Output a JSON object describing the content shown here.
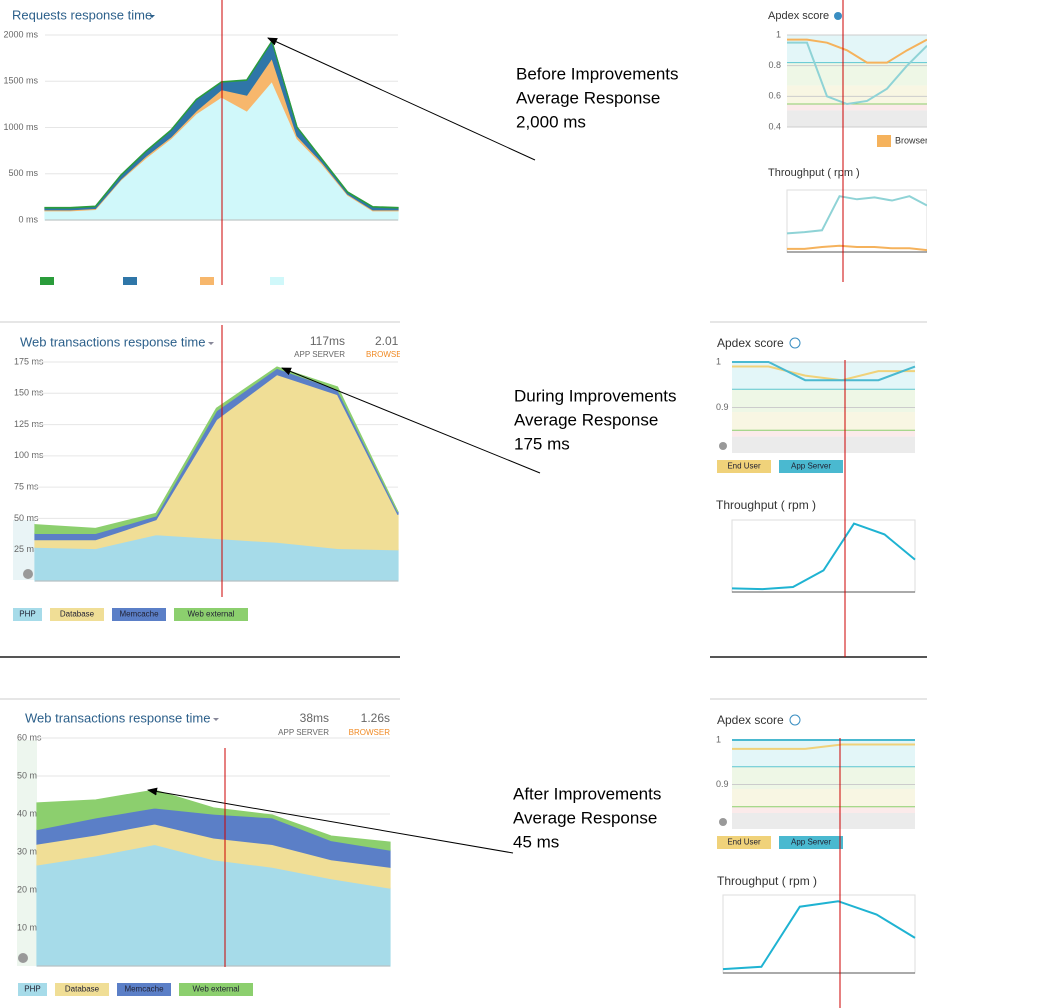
{
  "chart_data": [
    {
      "type": "area",
      "title": "Requests response time",
      "ylim": [
        0,
        2000
      ],
      "yticks": [
        {
          "value": 0,
          "label": "0 ms"
        },
        {
          "value": 500,
          "label": "500 ms"
        },
        {
          "value": 1000,
          "label": "1000 ms"
        },
        {
          "value": 1500,
          "label": "1500 ms"
        },
        {
          "value": 2000,
          "label": "2000 ms"
        }
      ],
      "grid": true,
      "series": [
        {
          "color": "#d0f8fa",
          "values": [
            100,
            100,
            115,
            430,
            670,
            880,
            1150,
            1330,
            1180,
            1500,
            880,
            600,
            270,
            100,
            100
          ]
        },
        {
          "color": "#f7b76c",
          "values": [
            10,
            10,
            10,
            10,
            20,
            20,
            30,
            80,
            170,
            250,
            30,
            20,
            10,
            10,
            10
          ]
        },
        {
          "color": "#2f76a8",
          "values": [
            20,
            20,
            20,
            40,
            50,
            70,
            120,
            80,
            160,
            180,
            90,
            30,
            20,
            30,
            20
          ]
        },
        {
          "color": "#2a9c3b",
          "values": [
            5,
            5,
            5,
            5,
            5,
            5,
            5,
            5,
            5,
            5,
            5,
            5,
            5,
            5,
            5
          ]
        }
      ]
    },
    {
      "type": "area",
      "title": "Web transactions response time",
      "app_server": "117ms",
      "app_server_label": "APP SERVER",
      "browser": "2.01",
      "browser_label": "BROWSER",
      "ylim": [
        0,
        175
      ],
      "yticks": [
        {
          "value": 25,
          "label": "25 ms"
        },
        {
          "value": 50,
          "label": "50 ms"
        },
        {
          "value": 75,
          "label": "75 ms"
        },
        {
          "value": 100,
          "label": "100 ms"
        },
        {
          "value": 125,
          "label": "125 ms"
        },
        {
          "value": 150,
          "label": "150 ms"
        },
        {
          "value": 175,
          "label": "175 ms"
        }
      ],
      "grid": true,
      "series": [
        {
          "name": "PHP",
          "color": "#a6dbe9",
          "values": [
            27,
            26,
            37,
            34,
            31,
            26,
            25
          ]
        },
        {
          "name": "Database",
          "color": "#f0de96",
          "values": [
            6,
            7,
            12,
            95,
            134,
            123,
            28
          ]
        },
        {
          "name": "Memcache",
          "color": "#5b7fc7",
          "values": [
            5,
            5,
            3,
            7,
            5,
            4,
            2
          ]
        },
        {
          "name": "Web external",
          "color": "#8ccf6e",
          "values": [
            7,
            4,
            2,
            2,
            1,
            2,
            0
          ]
        }
      ]
    },
    {
      "type": "area",
      "title": "Web transactions response time",
      "app_server": "38ms",
      "app_server_label": "APP SERVER",
      "browser": "1.26s",
      "browser_label": "BROWSER",
      "ylim": [
        0,
        60
      ],
      "yticks": [
        {
          "value": 10,
          "label": "10 m"
        },
        {
          "value": 20,
          "label": "20 m"
        },
        {
          "value": 30,
          "label": "30 m"
        },
        {
          "value": 40,
          "label": "40 m"
        },
        {
          "value": 50,
          "label": "50 m"
        },
        {
          "value": 60,
          "label": "60 ms"
        }
      ],
      "grid": true,
      "series": [
        {
          "name": "PHP",
          "color": "#a6dbe9",
          "values": [
            26.6,
            29,
            32,
            28,
            26,
            23,
            20.5
          ]
        },
        {
          "name": "Database",
          "color": "#f0de96",
          "values": [
            5.5,
            5.5,
            5.4,
            5.7,
            6,
            5,
            5.5
          ]
        },
        {
          "name": "Memcache",
          "color": "#5b7fc7",
          "values": [
            3.8,
            4.5,
            4.2,
            6.3,
            7,
            5,
            4.5
          ]
        },
        {
          "name": "Web external",
          "color": "#8ccf6e",
          "values": [
            7,
            4.7,
            4.7,
            1.6,
            0.7,
            1.2,
            2.1
          ]
        }
      ]
    },
    {
      "type": "line",
      "title": "Apdex score",
      "ylim": [
        0.4,
        1
      ],
      "yticks": [
        0.4,
        0.6,
        0.8,
        1
      ],
      "series": [
        {
          "name": "Browser",
          "color": "#f5b25c",
          "values": [
            0.97,
            0.97,
            0.95,
            0.9,
            0.82,
            0.82,
            0.9,
            0.97
          ]
        },
        {
          "color": "#8fd3d6",
          "values": [
            0.95,
            0.95,
            0.6,
            0.55,
            0.57,
            0.65,
            0.8,
            0.93
          ]
        }
      ]
    },
    {
      "type": "line",
      "title": "Throughput ( rpm )",
      "ylim": [
        0,
        100
      ],
      "series": [
        {
          "color": "#8fd3d6",
          "values": [
            30,
            32,
            35,
            90,
            85,
            88,
            83,
            90,
            75
          ]
        },
        {
          "color": "#f5b25c",
          "values": [
            5,
            5,
            8,
            10,
            8,
            8,
            6,
            6,
            3
          ]
        }
      ]
    },
    {
      "type": "line",
      "title": "Apdex score",
      "ylim": [
        0.8,
        1
      ],
      "yticks": [
        0.9,
        1
      ],
      "series": [
        {
          "name": "End User",
          "color": "#f0d27a",
          "values": [
            0.99,
            0.99,
            0.97,
            0.96,
            0.98,
            0.98
          ]
        },
        {
          "name": "App Server",
          "color": "#4ab9d0",
          "values": [
            1,
            1,
            0.96,
            0.96,
            0.96,
            0.99
          ]
        }
      ]
    },
    {
      "type": "line",
      "title": "Throughput ( rpm )",
      "ylim": [
        0,
        100
      ],
      "series": [
        {
          "color": "#1fb3d2",
          "values": [
            5,
            4,
            7,
            30,
            95,
            80,
            45
          ]
        }
      ]
    },
    {
      "type": "line",
      "title": "Apdex score",
      "ylim": [
        0.8,
        1
      ],
      "yticks": [
        0.9,
        1
      ],
      "series": [
        {
          "name": "End User",
          "color": "#f0d27a",
          "values": [
            0.98,
            0.98,
            0.98,
            0.99,
            0.99,
            0.99
          ]
        },
        {
          "name": "App Server",
          "color": "#4ab9d0",
          "values": [
            1,
            1,
            1,
            1,
            1,
            1
          ]
        }
      ]
    },
    {
      "type": "line",
      "title": "Throughput ( rpm )",
      "ylim": [
        0,
        100
      ],
      "series": [
        {
          "color": "#1fb3d2",
          "values": [
            5,
            8,
            85,
            92,
            75,
            45
          ]
        }
      ]
    }
  ],
  "annotations": [
    [
      "Before Improvements",
      "Average Response",
      "2,000 ms"
    ],
    [
      "During Improvements",
      "Average Response",
      "175 ms"
    ],
    [
      "After Improvements",
      "Average Response",
      "45 ms"
    ]
  ]
}
